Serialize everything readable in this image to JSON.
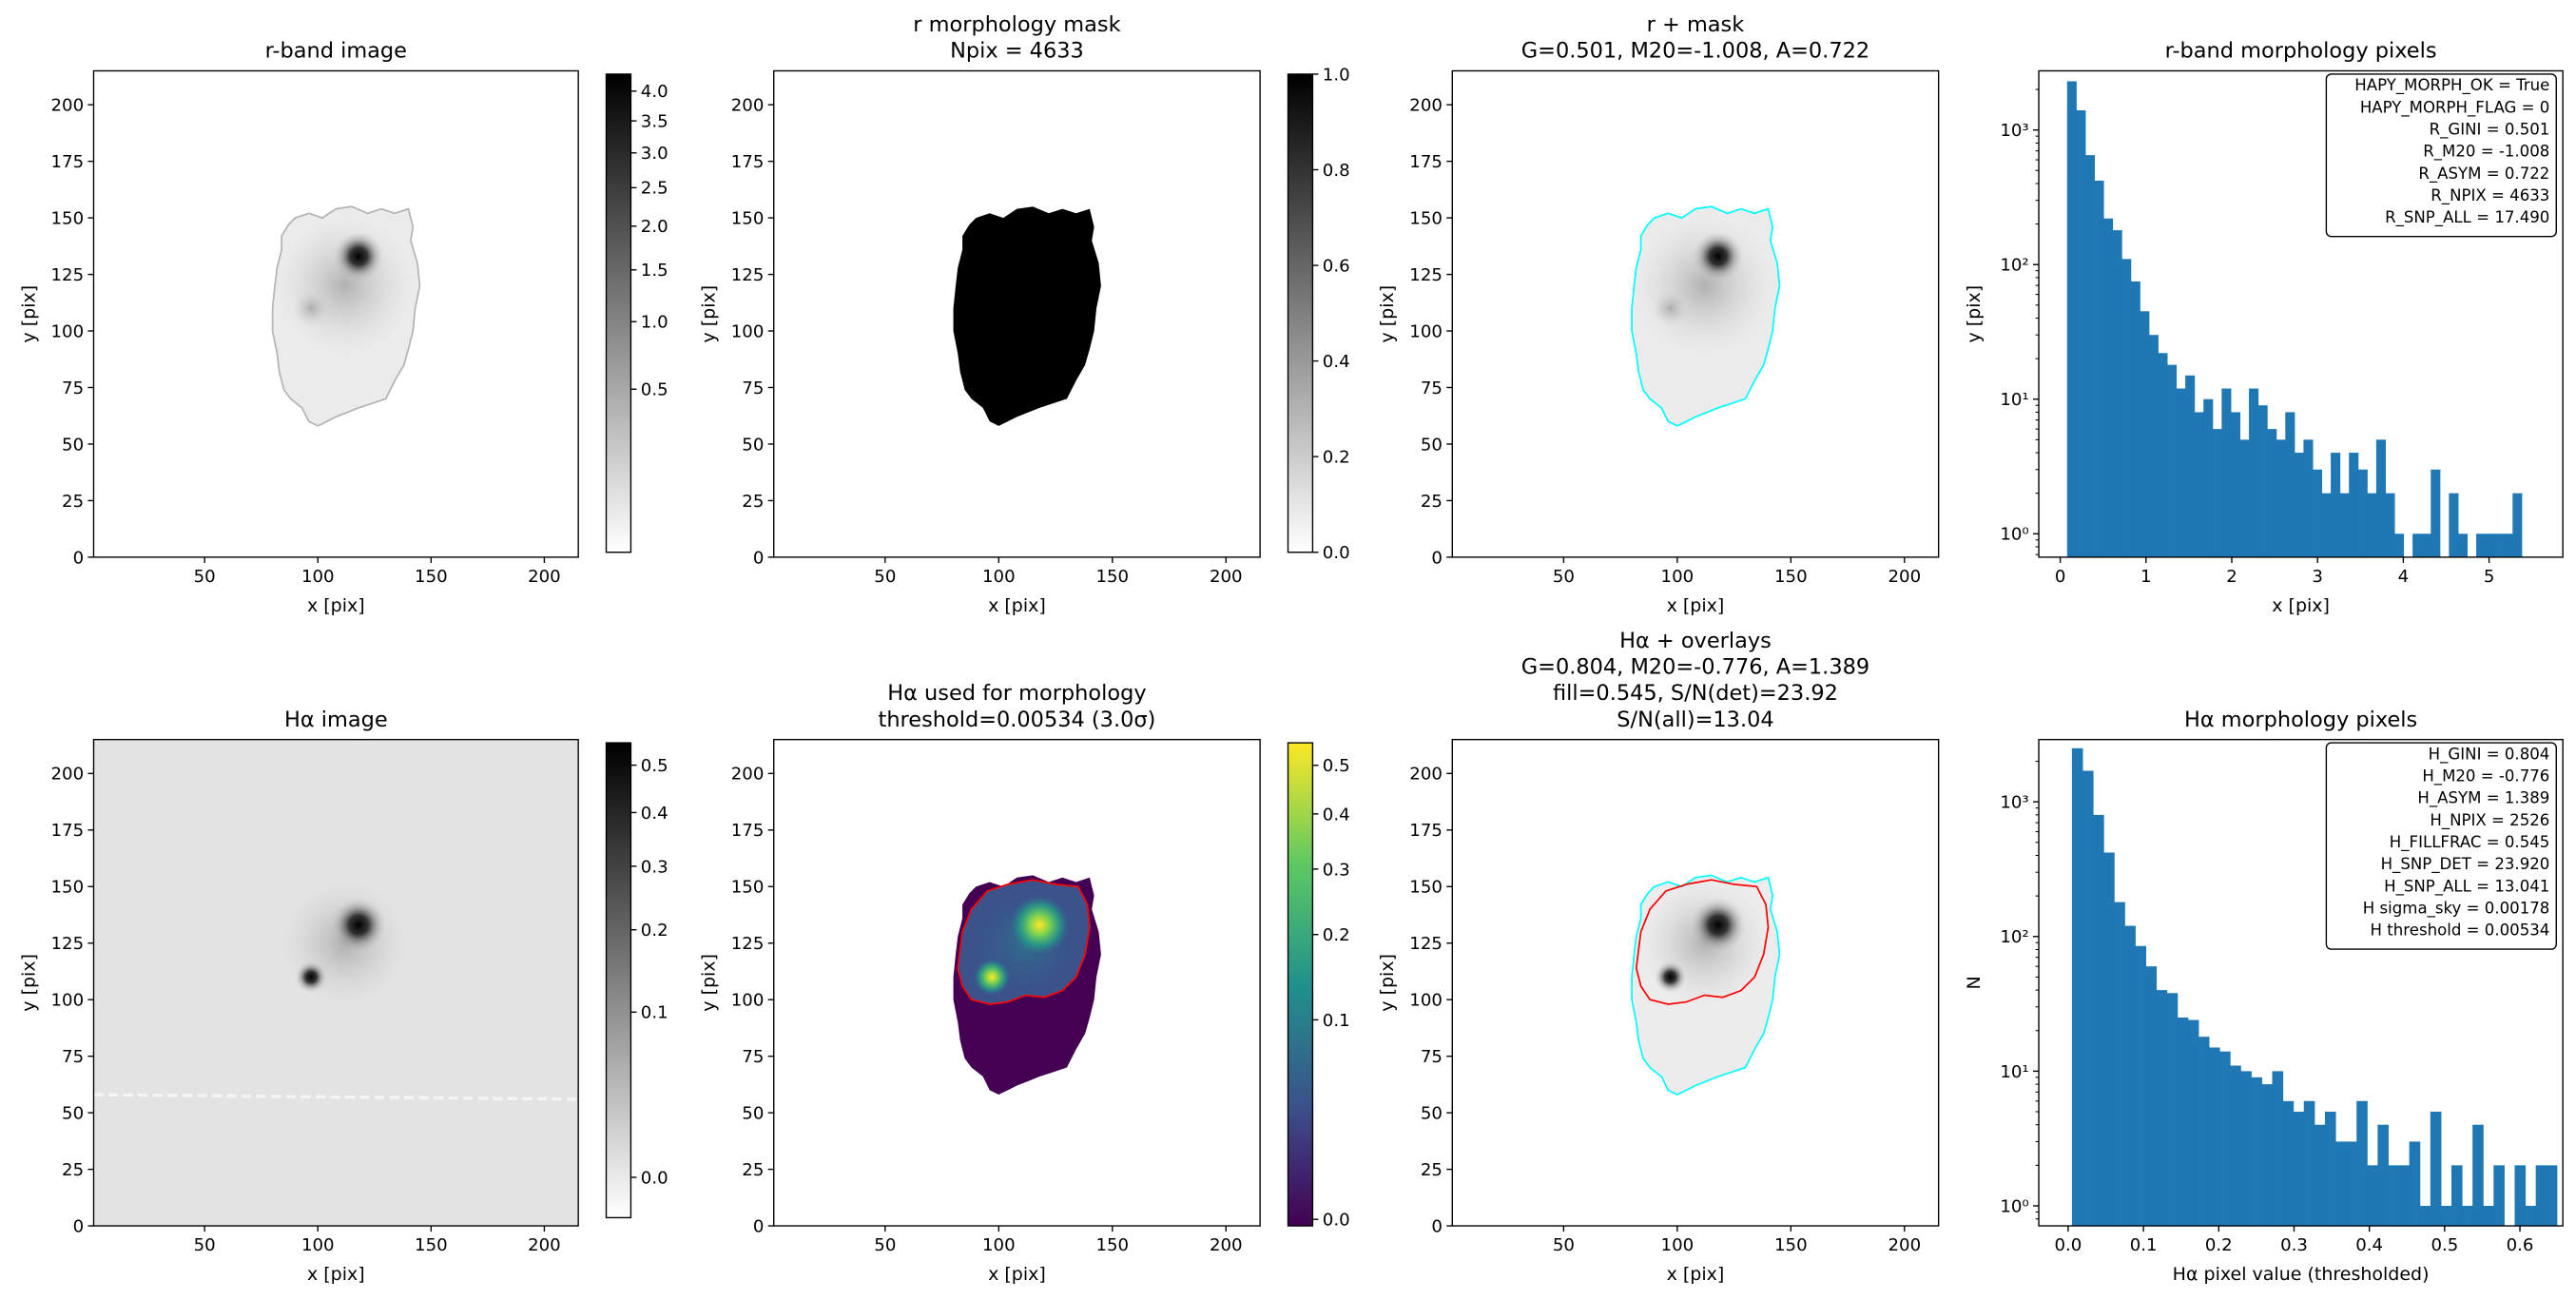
{
  "chart_data": [
    {
      "type": "image",
      "title": [
        "r-band image"
      ],
      "xlabel": "x [pix]",
      "ylabel": "y [pix]",
      "xlim": [
        1,
        215
      ],
      "ylim": [
        0,
        215
      ],
      "xticks": [
        50,
        100,
        150,
        200
      ],
      "yticks": [
        0,
        25,
        50,
        75,
        100,
        125,
        150,
        175,
        200
      ],
      "render": "galaxy",
      "contours": [
        {
          "shape": "galaxy",
          "color": "#b4b4b4"
        }
      ],
      "colorbar": {
        "cmap": "gray_r",
        "scale": "sqrt",
        "lim": [
          0,
          4.3
        ],
        "ticks": [
          0.5,
          {
            "value": 1,
            "label": "1.0"
          },
          1.5,
          {
            "value": 2,
            "label": "2.0"
          },
          2.5,
          {
            "value": 3,
            "label": "3.0"
          },
          3.5,
          {
            "value": 4,
            "label": "4.0"
          }
        ]
      }
    },
    {
      "type": "image",
      "title": [
        "r morphology mask",
        "Npix = 4633"
      ],
      "xlabel": "x [pix]",
      "ylabel": "y [pix]",
      "xlim": [
        1,
        215
      ],
      "ylim": [
        0,
        215
      ],
      "xticks": [
        50,
        100,
        150,
        200
      ],
      "yticks": [
        0,
        25,
        50,
        75,
        100,
        125,
        150,
        175,
        200
      ],
      "render": "mask",
      "contours": [],
      "colorbar": {
        "cmap": "gray_r",
        "scale": "linear",
        "lim": [
          0,
          1
        ],
        "ticks": [
          {
            "value": 0,
            "label": "0.0"
          },
          0.2,
          0.4,
          0.6,
          0.8,
          {
            "value": 1,
            "label": "1.0"
          }
        ]
      }
    },
    {
      "type": "image",
      "title": [
        "r + mask",
        "G=0.501, M20=-1.008, A=0.722"
      ],
      "xlabel": "x [pix]",
      "ylabel": "y [pix]",
      "xlim": [
        1,
        215
      ],
      "ylim": [
        0,
        215
      ],
      "xticks": [
        50,
        100,
        150,
        200
      ],
      "yticks": [
        0,
        25,
        50,
        75,
        100,
        125,
        150,
        175,
        200
      ],
      "render": "galaxy",
      "contours": [
        {
          "shape": "galaxy",
          "color": "#00ffff"
        }
      ]
    },
    {
      "type": "histogram",
      "title": [
        "r-band morphology pixels"
      ],
      "xlabel": "x [pix]",
      "ylabel": "y [pix]",
      "xlim": [
        -0.25,
        5.86
      ],
      "ylim": [
        0.67,
        2750
      ],
      "yscale": "log",
      "color": "#1f77b4",
      "xticks": [
        0,
        1,
        2,
        3,
        4,
        5
      ],
      "yticks": [
        {
          "value": 1,
          "label": "10⁰"
        },
        {
          "value": 10,
          "label": "10¹"
        },
        {
          "value": 100,
          "label": "10²"
        },
        {
          "value": 1000,
          "label": "10³"
        }
      ],
      "bins": [
        0.08,
        0.186,
        0.292,
        0.398,
        0.504,
        0.61,
        0.716,
        0.822,
        0.928,
        1.034,
        1.14,
        1.246,
        1.352,
        1.458,
        1.564,
        1.67,
        1.776,
        1.882,
        1.988,
        2.094,
        2.2,
        2.306,
        2.412,
        2.518,
        2.624,
        2.73,
        2.836,
        2.942,
        3.048,
        3.154,
        3.26,
        3.366,
        3.472,
        3.578,
        3.684,
        3.79,
        3.896,
        4.002,
        4.108,
        4.214,
        4.32,
        4.426,
        4.532,
        4.638,
        4.744,
        4.85,
        4.956,
        5.062,
        5.168,
        5.274,
        5.38
      ],
      "values": [
        2300,
        1400,
        650,
        420,
        220,
        180,
        110,
        75,
        45,
        30,
        22,
        18,
        12,
        15,
        8,
        10,
        6,
        12,
        8,
        5,
        12,
        9,
        6,
        5,
        8,
        4,
        5,
        3,
        2,
        4,
        2,
        4,
        3,
        2,
        5,
        2,
        1,
        0,
        1,
        1,
        3,
        0,
        2,
        1,
        0,
        1,
        1,
        1,
        1,
        2
      ],
      "annotation": [
        "HAPY_MORPH_OK = True",
        "HAPY_MORPH_FLAG = 0",
        "R_GINI = 0.501",
        "R_M20 = -1.008",
        "R_ASYM = 0.722",
        "R_NPIX = 4633",
        "R_SNP_ALL = 17.490"
      ]
    },
    {
      "type": "image",
      "title": [
        "Hα image"
      ],
      "xlabel": "x [pix]",
      "ylabel": "y [pix]",
      "xlim": [
        1,
        215
      ],
      "ylim": [
        0,
        215
      ],
      "xticks": [
        50,
        100,
        150,
        200
      ],
      "yticks": [
        0,
        25,
        50,
        75,
        100,
        125,
        150,
        175,
        200
      ],
      "render": "sky",
      "contours": [],
      "colorbar": {
        "cmap": "gray_r",
        "scale": "sqrt",
        "lim": [
          -0.004,
          0.551
        ],
        "ticks": [
          {
            "value": 0,
            "label": "0.0"
          },
          0.1,
          0.2,
          0.3,
          0.4,
          0.5
        ]
      }
    },
    {
      "type": "image",
      "title": [
        "Hα used for morphology",
        "threshold=0.00534 (3.0σ)"
      ],
      "xlabel": "x [pix]",
      "ylabel": "y [pix]",
      "xlim": [
        1,
        215
      ],
      "ylim": [
        0,
        215
      ],
      "xticks": [
        50,
        100,
        150,
        200
      ],
      "yticks": [
        0,
        25,
        50,
        75,
        100,
        125,
        150,
        175,
        200
      ],
      "render": "viridis",
      "contours": [
        {
          "shape": "core",
          "color": "#ff0000"
        }
      ],
      "colorbar": {
        "cmap": "viridis",
        "scale": "sqrt",
        "lim": [
          -0.0001,
          0.55
        ],
        "ticks": [
          {
            "value": 0,
            "label": "0.0"
          },
          0.1,
          0.2,
          0.3,
          0.4,
          0.5
        ]
      }
    },
    {
      "type": "image",
      "title": [
        "Hα + overlays",
        "G=0.804, M20=-0.776, A=1.389",
        "fill=0.545, S/N(det)=23.92",
        "S/N(all)=13.04"
      ],
      "xlabel": "x [pix]",
      "ylabel": "y [pix]",
      "xlim": [
        1,
        215
      ],
      "ylim": [
        0,
        215
      ],
      "xticks": [
        50,
        100,
        150,
        200
      ],
      "yticks": [
        0,
        25,
        50,
        75,
        100,
        125,
        150,
        175,
        200
      ],
      "render": "halpha",
      "contours": [
        {
          "shape": "galaxy",
          "color": "#00ffff"
        },
        {
          "shape": "core",
          "color": "#ff0000"
        }
      ]
    },
    {
      "type": "histogram",
      "title": [
        "Hα morphology pixels"
      ],
      "xlabel": "Hα pixel value (thresholded)",
      "ylabel": "N",
      "xlim": [
        -0.039,
        0.657
      ],
      "ylim": [
        0.71,
        2900
      ],
      "yscale": "log",
      "color": "#1f77b4",
      "xticks": [
        {
          "value": 0,
          "label": "0.0"
        },
        0.1,
        0.2,
        0.3,
        0.4,
        0.5,
        0.6
      ],
      "yticks": [
        {
          "value": 1,
          "label": "10⁰"
        },
        {
          "value": 10,
          "label": "10¹"
        },
        {
          "value": 100,
          "label": "10²"
        },
        {
          "value": 1000,
          "label": "10³"
        }
      ],
      "bins": [
        0.005,
        0.019,
        0.033,
        0.047,
        0.061,
        0.075,
        0.089,
        0.103,
        0.117,
        0.131,
        0.145,
        0.159,
        0.173,
        0.187,
        0.201,
        0.215,
        0.229,
        0.243,
        0.257,
        0.271,
        0.285,
        0.299,
        0.313,
        0.327,
        0.341,
        0.355,
        0.369,
        0.383,
        0.397,
        0.411,
        0.425,
        0.439,
        0.453,
        0.467,
        0.481,
        0.495,
        0.509,
        0.523,
        0.537,
        0.551,
        0.565,
        0.579,
        0.593,
        0.607,
        0.621,
        0.635,
        0.649
      ],
      "values": [
        2500,
        1700,
        800,
        420,
        180,
        120,
        85,
        60,
        40,
        38,
        25,
        24,
        18,
        15,
        14,
        11,
        10,
        9,
        8,
        10,
        6,
        5,
        6,
        4,
        5,
        3,
        3,
        6,
        2,
        4,
        2,
        2,
        3,
        1,
        5,
        1,
        2,
        1,
        4,
        1,
        2,
        0,
        2,
        1,
        2,
        2
      ],
      "annotation": [
        "H_GINI = 0.804",
        "H_M20 = -0.776",
        "H_ASYM = 1.389",
        "H_NPIX = 2526",
        "H_FILLFRAC = 0.545",
        "H_SNP_DET = 23.920",
        "H_SNP_ALL = 13.041",
        "H sigma_sky = 0.00178",
        "H threshold = 0.00534"
      ]
    }
  ]
}
